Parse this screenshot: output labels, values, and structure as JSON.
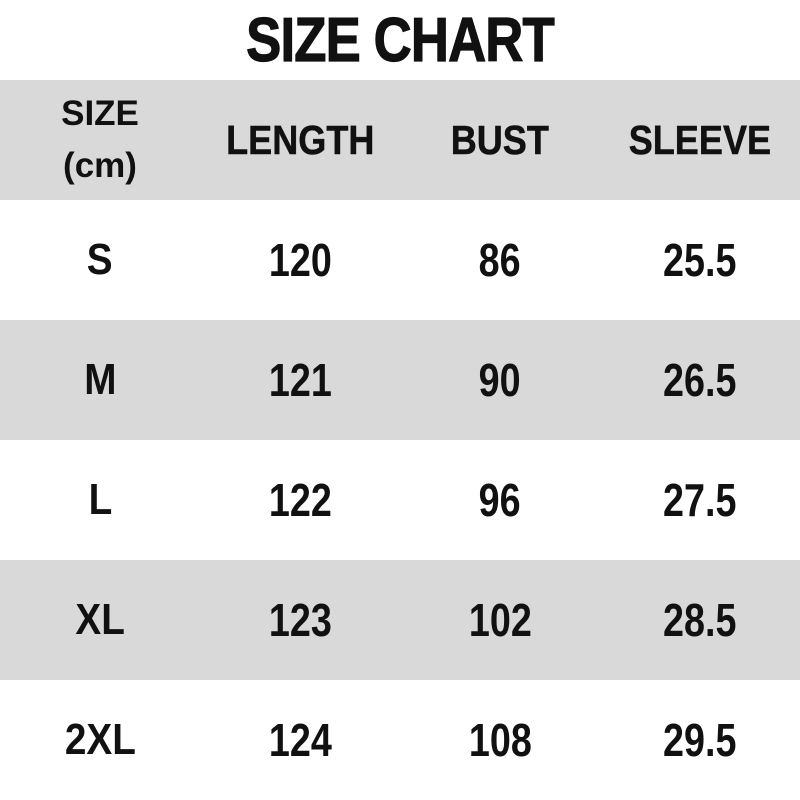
{
  "title": "SIZE CHART",
  "colors": {
    "background": "#ffffff",
    "stripe_bg": "#d9d9d9",
    "header_bg": "#d9d9d9",
    "text": "#111111"
  },
  "header": {
    "size_label": "SIZE",
    "size_unit": "(cm)",
    "length_label": "LENGTH",
    "bust_label": "BUST",
    "sleeve_label": "SLEEVE"
  },
  "chart_data": {
    "type": "table",
    "title": "SIZE CHART",
    "unit": "cm",
    "columns": [
      "SIZE (cm)",
      "LENGTH",
      "BUST",
      "SLEEVE"
    ],
    "rows": [
      {
        "size": "S",
        "length": 120,
        "bust": 86,
        "sleeve": 25.5
      },
      {
        "size": "M",
        "length": 121,
        "bust": 90,
        "sleeve": 26.5
      },
      {
        "size": "L",
        "length": 122,
        "bust": 96,
        "sleeve": 27.5
      },
      {
        "size": "XL",
        "length": 123,
        "bust": 102,
        "sleeve": 28.5
      },
      {
        "size": "2XL",
        "length": 124,
        "bust": 108,
        "sleeve": 29.5
      }
    ]
  }
}
